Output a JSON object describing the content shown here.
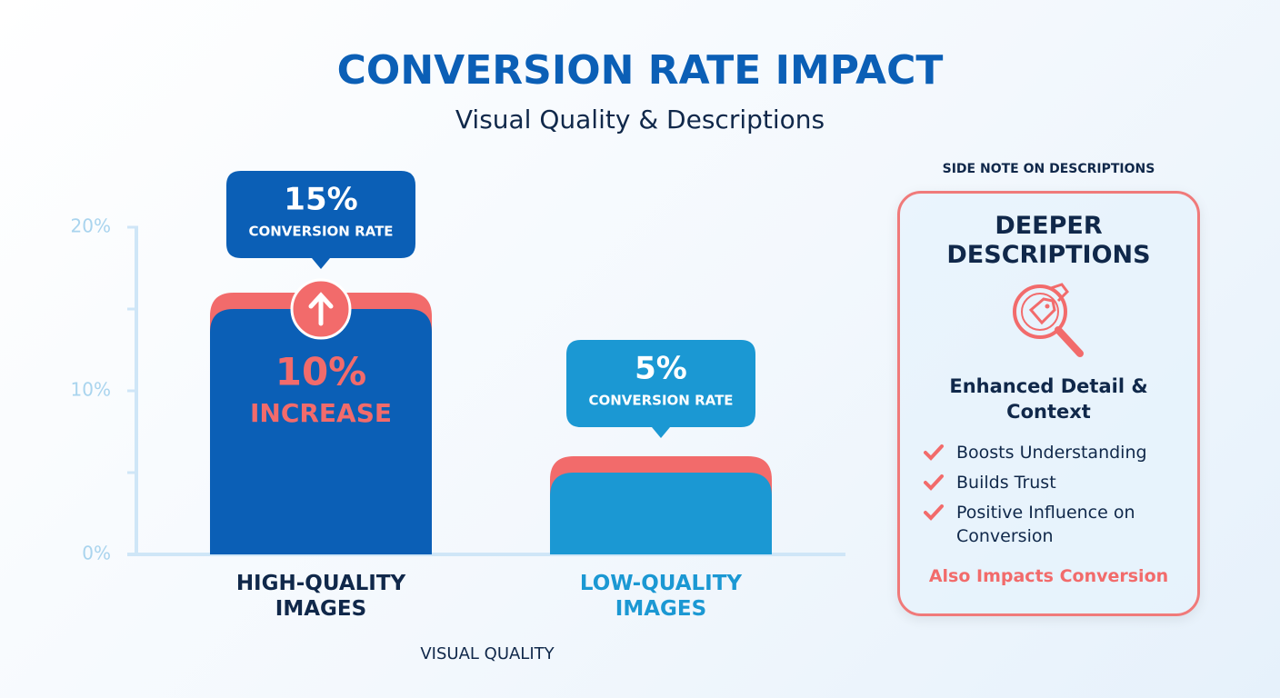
{
  "chart_data": {
    "type": "bar",
    "title": "CONVERSION RATE IMPACT",
    "subtitle": "Visual Quality & Descriptions",
    "x_label": "VISUAL QUALITY",
    "categories": [
      "HIGH-QUALITY IMAGES",
      "LOW-QUALITY IMAGES"
    ],
    "values": [
      15,
      5
    ],
    "value_labels": [
      "15%",
      "5%"
    ],
    "value_caption": "CONVERSION RATE",
    "colors": [
      "#0b5fb6",
      "#1b98d3"
    ],
    "category_colors": [
      "#10284a",
      "#1b98d3"
    ],
    "accent_color": "#f26b6b",
    "annotation": {
      "lines": [
        "10%",
        "INCREASE"
      ]
    },
    "ylim": [
      0,
      20
    ],
    "yticks": [
      {
        "value": 0,
        "label": "0%"
      },
      {
        "value": 10,
        "label": "10%"
      },
      {
        "value": 20,
        "label": "20%"
      }
    ],
    "yminorticks": [
      5,
      15
    ]
  },
  "side_note": {
    "heading": "SIDE NOTE ON DESCRIPTIONS",
    "title": "DEEPER DESCRIPTIONS",
    "subtitle": "Enhanced Detail & Context",
    "points": [
      "Boosts Understanding",
      "Builds Trust",
      "Positive Influence on Conversion"
    ],
    "footer": "Also Impacts Conversion"
  }
}
